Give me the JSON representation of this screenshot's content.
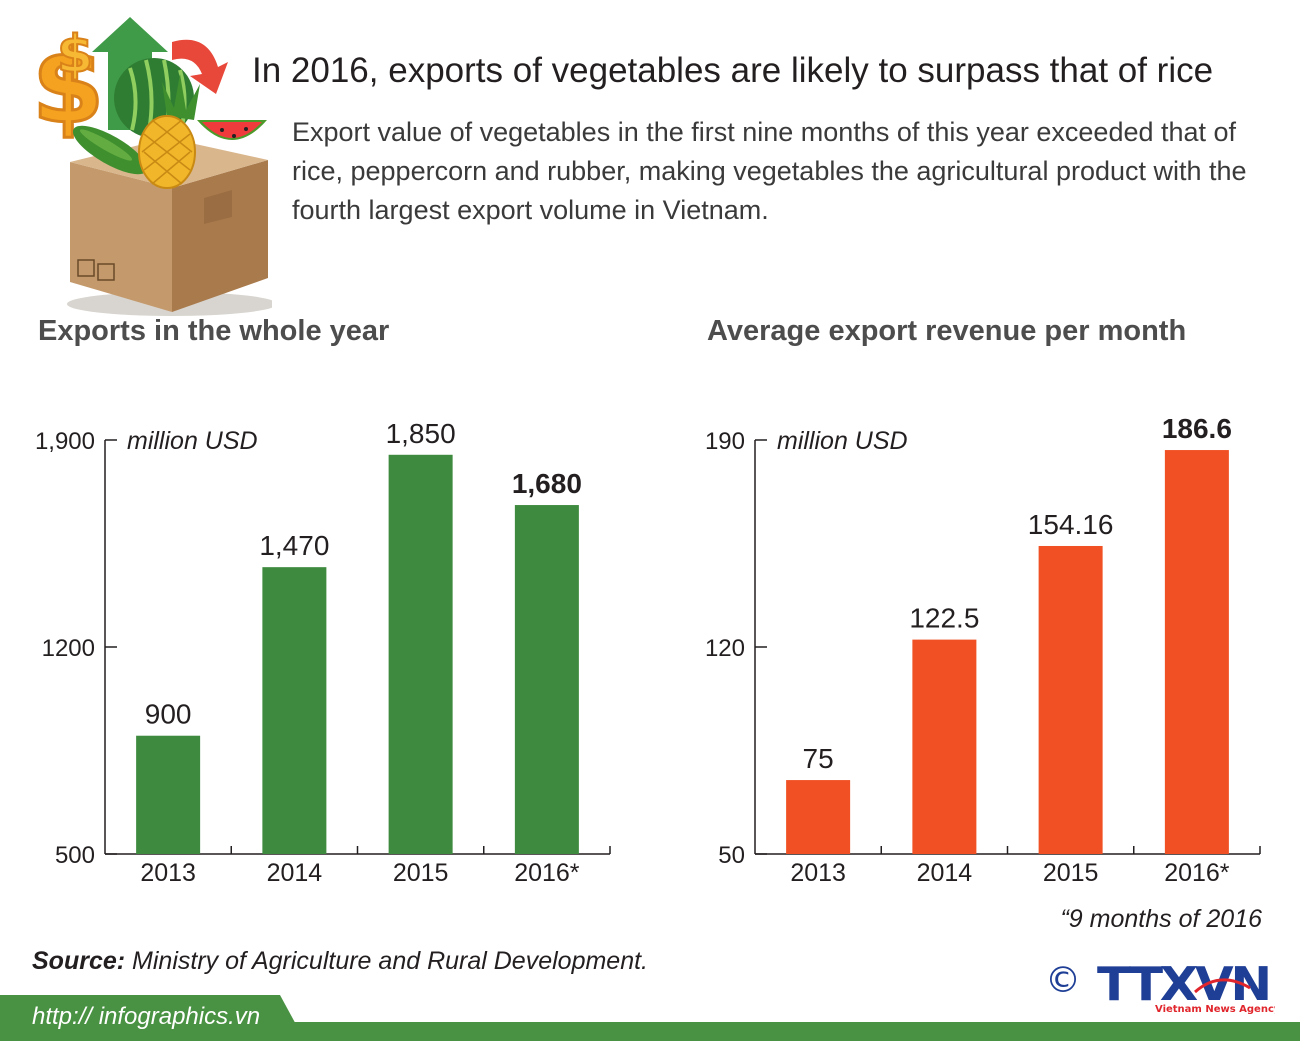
{
  "headline": "In 2016, exports of vegetables are likely to surpass that of rice",
  "lead": "Export value of vegetables in the first nine months of this year exceeded that of rice, peppercorn and rubber, making vegetables the agricultural product with the fourth largest export volume in Vietnam.",
  "illustration_icons": [
    "dollar-icon",
    "arrow-up-icon",
    "watermelon-icon",
    "pineapple-icon",
    "cucumber-icon",
    "cardboard-box-icon"
  ],
  "chart_data": [
    {
      "type": "bar",
      "title": "Exports in the whole year",
      "unit": "million USD",
      "categories": [
        "2013",
        "2014",
        "2015",
        "2016*"
      ],
      "values": [
        900,
        1470,
        1850,
        1680
      ],
      "value_labels": [
        "900",
        "1,470",
        "1,850",
        "1,680"
      ],
      "highlight_index": 3,
      "ylim": [
        500,
        1900
      ],
      "yticks": [
        500,
        1200,
        1900
      ],
      "ytick_labels": [
        "500",
        "1200",
        "1,900"
      ],
      "color": "#3e8a3e",
      "grid": false
    },
    {
      "type": "bar",
      "title": "Average export revenue per month",
      "unit": "million USD",
      "categories": [
        "2013",
        "2014",
        "2015",
        "2016*"
      ],
      "values": [
        75,
        122.5,
        154.16,
        186.6
      ],
      "value_labels": [
        "75",
        "122.5",
        "154.16",
        "186.6"
      ],
      "highlight_index": 3,
      "ylim": [
        50,
        190
      ],
      "yticks": [
        50,
        120,
        190
      ],
      "ytick_labels": [
        "50",
        "120",
        "190"
      ],
      "color": "#f05023",
      "grid": false
    }
  ],
  "note": "“9 months of 2016",
  "source": {
    "label": "Source:",
    "text": "Ministry of Agriculture and Rural Development."
  },
  "footer": {
    "url": "http:// infographics.vn"
  },
  "logo": {
    "copyright": "©",
    "name": "TTXVN",
    "tagline": "Vietnam News Agency"
  },
  "colors": {
    "green_bar": "#3e8a3e",
    "orange_bar": "#f05023",
    "footer_green": "#4a9243",
    "logo_blue": "#1f3f96",
    "logo_red": "#e0262c"
  }
}
